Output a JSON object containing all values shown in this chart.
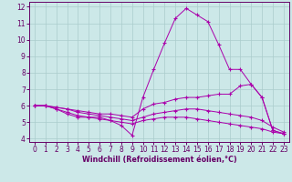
{
  "xlabel": "Windchill (Refroidissement éolien,°C)",
  "background_color": "#cce8e8",
  "line_color": "#aa00aa",
  "grid_color": "#aacccc",
  "xlim": [
    -0.5,
    23.5
  ],
  "ylim": [
    3.8,
    12.3
  ],
  "xticks": [
    0,
    1,
    2,
    3,
    4,
    5,
    6,
    7,
    8,
    9,
    10,
    11,
    12,
    13,
    14,
    15,
    16,
    17,
    18,
    19,
    20,
    21,
    22,
    23
  ],
  "yticks": [
    4,
    5,
    6,
    7,
    8,
    9,
    10,
    11,
    12
  ],
  "line1_y": [
    6.0,
    6.0,
    5.8,
    5.5,
    5.3,
    5.3,
    5.3,
    5.1,
    4.8,
    4.2,
    6.5,
    8.2,
    9.8,
    11.3,
    11.9,
    11.5,
    11.1,
    9.7,
    8.2,
    8.2,
    7.3,
    6.5,
    4.5,
    4.3
  ],
  "line2_y": [
    6.0,
    6.0,
    5.9,
    5.8,
    5.7,
    5.6,
    5.5,
    5.5,
    5.4,
    5.3,
    5.8,
    6.1,
    6.2,
    6.4,
    6.5,
    6.5,
    6.6,
    6.7,
    6.7,
    7.2,
    7.3,
    6.5,
    4.5,
    4.3
  ],
  "line3_y": [
    6.0,
    6.0,
    5.9,
    5.8,
    5.6,
    5.5,
    5.4,
    5.3,
    5.2,
    5.1,
    5.3,
    5.5,
    5.6,
    5.7,
    5.8,
    5.8,
    5.7,
    5.6,
    5.5,
    5.4,
    5.3,
    5.1,
    4.7,
    4.4
  ],
  "line4_y": [
    6.0,
    6.0,
    5.8,
    5.6,
    5.4,
    5.3,
    5.2,
    5.1,
    5.0,
    4.9,
    5.1,
    5.2,
    5.3,
    5.3,
    5.3,
    5.2,
    5.1,
    5.0,
    4.9,
    4.8,
    4.7,
    4.6,
    4.4,
    4.3
  ],
  "label_fontsize": 5.5,
  "tick_fontsize": 5.5,
  "xlabel_fontsize": 5.8
}
